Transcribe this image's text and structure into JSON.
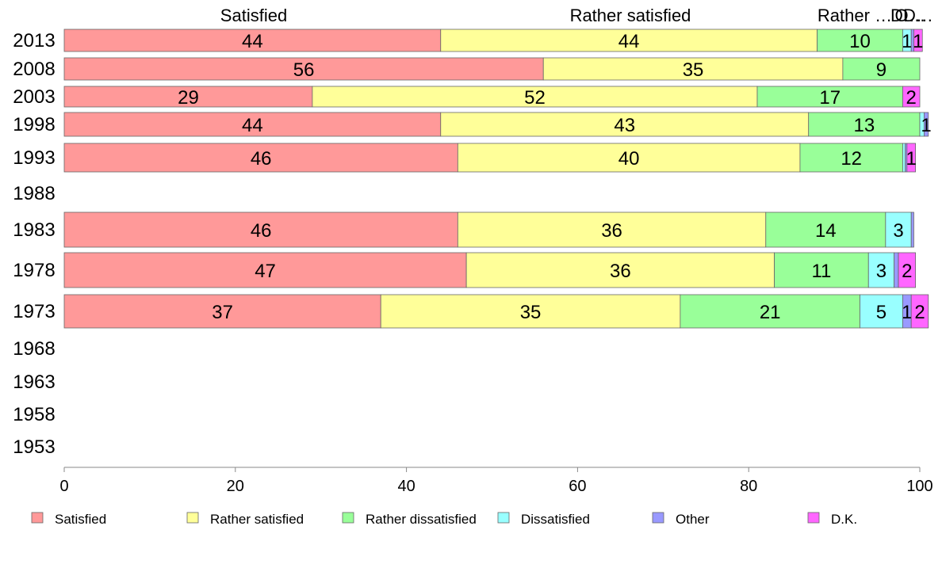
{
  "chart_data": {
    "type": "bar",
    "orientation": "horizontal",
    "stacked": true,
    "xlim": [
      0,
      100
    ],
    "x_ticks": [
      0,
      20,
      40,
      60,
      80,
      100
    ],
    "categories": [
      "2013",
      "2008",
      "2003",
      "1998",
      "1993",
      "1988",
      "1983",
      "1978",
      "1973",
      "1968",
      "1963",
      "1958",
      "1953"
    ],
    "top_labels": [
      "Satisfied",
      "Rather satisfied",
      "Rather …",
      "D…",
      "O…",
      "D…"
    ],
    "legend_position": "bottom",
    "series": [
      {
        "name": "Satisfied",
        "color": "#ff9999",
        "values": [
          44,
          56,
          29,
          44,
          46,
          null,
          46,
          47,
          37,
          null,
          null,
          null,
          null
        ]
      },
      {
        "name": "Rather satisfied",
        "color": "#ffff99",
        "values": [
          44,
          35,
          52,
          43,
          40,
          null,
          36,
          36,
          35,
          null,
          null,
          null,
          null
        ]
      },
      {
        "name": "Rather dissatisfied",
        "color": "#99ff99",
        "values": [
          10,
          9,
          17,
          13,
          12,
          null,
          14,
          11,
          21,
          null,
          null,
          null,
          null
        ]
      },
      {
        "name": "Dissatisfied",
        "color": "#99ffff",
        "values": [
          1,
          0,
          0,
          0.5,
          0.3,
          null,
          3,
          3,
          5,
          null,
          null,
          null,
          null
        ]
      },
      {
        "name": "Other",
        "color": "#9999ff",
        "values": [
          0.3,
          0,
          0,
          0.5,
          0.2,
          null,
          0.3,
          0.5,
          1,
          null,
          null,
          null,
          null
        ]
      },
      {
        "name": "D.K.",
        "color": "#ff66ff",
        "values": [
          1,
          0,
          2,
          0,
          1,
          null,
          0,
          2,
          2,
          null,
          null,
          null,
          null
        ]
      }
    ],
    "data_labels": [
      [
        "44",
        "44",
        "10",
        "1",
        "",
        "1"
      ],
      [
        "56",
        "35",
        "9",
        "",
        "",
        ""
      ],
      [
        "29",
        "52",
        "17",
        "",
        "",
        "2"
      ],
      [
        "44",
        "43",
        "13",
        "",
        "1",
        ""
      ],
      [
        "46",
        "40",
        "12",
        "",
        "",
        "1"
      ],
      [],
      [
        "46",
        "36",
        "14",
        "3",
        "",
        ""
      ],
      [
        "47",
        "36",
        "11",
        "3",
        "",
        "2"
      ],
      [
        "37",
        "35",
        "21",
        "5",
        "1",
        "2"
      ],
      [],
      [],
      [],
      []
    ]
  }
}
